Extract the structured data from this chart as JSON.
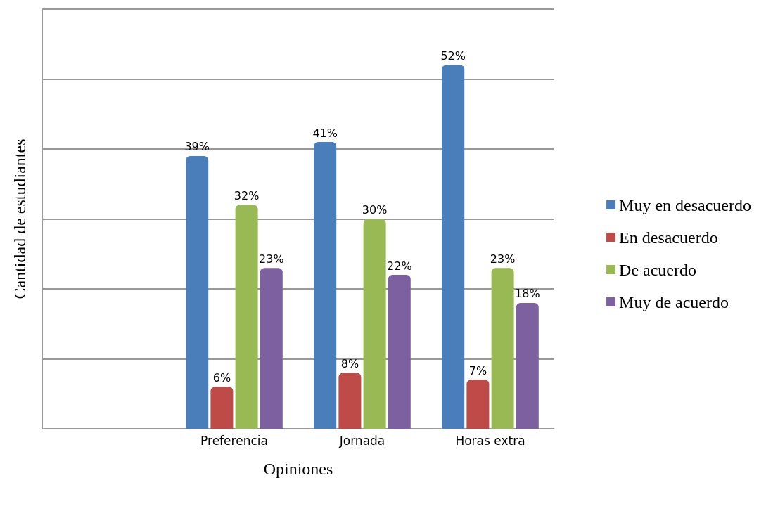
{
  "chart_data": {
    "type": "bar",
    "xlabel": "Opiniones",
    "ylabel": "Cantidad de estudiantes",
    "categories": [
      null,
      "Preferencia",
      "Jornada",
      "Horas extra"
    ],
    "series": [
      {
        "name": "Muy en desacuerdo",
        "color": "#4a7ebb",
        "values": [
          null,
          39,
          41,
          52
        ],
        "value_labels": [
          null,
          "39%",
          "41%",
          "52%"
        ]
      },
      {
        "name": "En desacuerdo",
        "color": "#be4b48",
        "values": [
          null,
          6,
          8,
          7
        ],
        "value_labels": [
          null,
          "6%",
          "8%",
          "7%"
        ]
      },
      {
        "name": "De acuerdo",
        "color": "#98b954",
        "values": [
          null,
          32,
          30,
          23
        ],
        "value_labels": [
          null,
          "32%",
          "30%",
          "23%"
        ]
      },
      {
        "name": "Muy de acuerdo",
        "color": "#7d60a0",
        "values": [
          null,
          23,
          22,
          18
        ],
        "value_labels": [
          null,
          "23%",
          "22%",
          "18%"
        ]
      }
    ],
    "ylim": [
      0,
      60
    ],
    "yticks": [
      {
        "value": 0,
        "label": null
      },
      {
        "value": 10,
        "label": null
      },
      {
        "value": 20,
        "label": null
      },
      {
        "value": 30,
        "label": null
      },
      {
        "value": 40,
        "label": null
      },
      {
        "value": 50,
        "label": null
      },
      {
        "value": 60,
        "label": null
      }
    ],
    "grid": "y",
    "tick_labels": "x",
    "legend": "right"
  }
}
